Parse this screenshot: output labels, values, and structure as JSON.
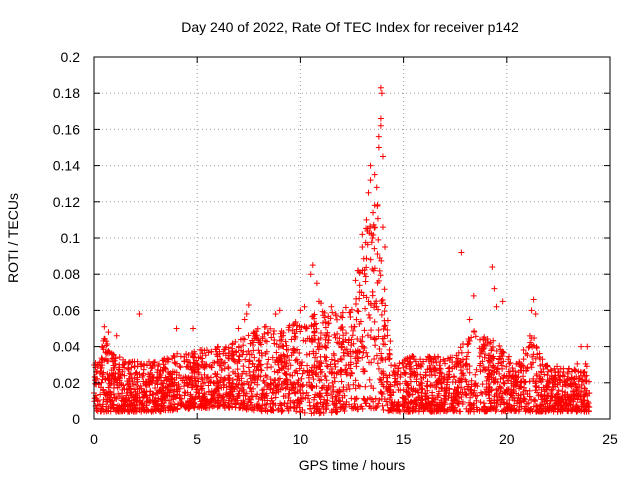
{
  "chart_data": {
    "type": "scatter",
    "title": "Day 240 of 2022, Rate Of TEC Index for receiver p142",
    "xlabel": "GPS time / hours",
    "ylabel": "ROTI / TECUs",
    "xlim": [
      0,
      25
    ],
    "ylim": [
      0,
      0.2
    ],
    "x_ticks": [
      0,
      5,
      10,
      15,
      20,
      25
    ],
    "y_ticks": [
      0,
      0.02,
      0.04,
      0.06,
      0.08,
      0.1,
      0.12,
      0.14,
      0.16,
      0.18,
      0.2
    ],
    "x_tick_labels": [
      "0",
      "5",
      "10",
      "15",
      "20",
      "25"
    ],
    "y_tick_labels": [
      "0",
      "0.02",
      "0.04",
      "0.06",
      "0.08",
      "0.1",
      "0.12",
      "0.14",
      "0.16",
      "0.18",
      "0.2"
    ],
    "grid": true,
    "marker": "+",
    "color": "#ff0000",
    "series": [
      {
        "name": "ROTI",
        "envelope": [
          {
            "t": 0.0,
            "base": 0.004,
            "top": 0.032
          },
          {
            "t": 0.5,
            "base": 0.004,
            "top": 0.045
          },
          {
            "t": 1.0,
            "base": 0.004,
            "top": 0.035
          },
          {
            "t": 2.0,
            "base": 0.004,
            "top": 0.032
          },
          {
            "t": 3.0,
            "base": 0.004,
            "top": 0.032
          },
          {
            "t": 4.0,
            "base": 0.005,
            "top": 0.036
          },
          {
            "t": 5.0,
            "base": 0.006,
            "top": 0.038
          },
          {
            "t": 6.0,
            "base": 0.006,
            "top": 0.04
          },
          {
            "t": 7.0,
            "base": 0.006,
            "top": 0.044
          },
          {
            "t": 8.0,
            "base": 0.004,
            "top": 0.052
          },
          {
            "t": 9.0,
            "base": 0.004,
            "top": 0.05
          },
          {
            "t": 10.0,
            "base": 0.003,
            "top": 0.055
          },
          {
            "t": 11.0,
            "base": 0.003,
            "top": 0.06
          },
          {
            "t": 12.0,
            "base": 0.004,
            "top": 0.058
          },
          {
            "t": 12.6,
            "base": 0.005,
            "top": 0.075
          },
          {
            "t": 13.2,
            "base": 0.005,
            "top": 0.11
          },
          {
            "t": 13.7,
            "base": 0.006,
            "top": 0.125
          },
          {
            "t": 14.0,
            "base": 0.005,
            "top": 0.08
          },
          {
            "t": 14.5,
            "base": 0.004,
            "top": 0.032
          },
          {
            "t": 15.5,
            "base": 0.004,
            "top": 0.035
          },
          {
            "t": 16.5,
            "base": 0.004,
            "top": 0.035
          },
          {
            "t": 17.5,
            "base": 0.004,
            "top": 0.034
          },
          {
            "t": 18.2,
            "base": 0.004,
            "top": 0.05
          },
          {
            "t": 19.0,
            "base": 0.004,
            "top": 0.045
          },
          {
            "t": 19.6,
            "base": 0.004,
            "top": 0.042
          },
          {
            "t": 20.5,
            "base": 0.004,
            "top": 0.03
          },
          {
            "t": 21.2,
            "base": 0.004,
            "top": 0.05
          },
          {
            "t": 22.0,
            "base": 0.004,
            "top": 0.03
          },
          {
            "t": 23.0,
            "base": 0.004,
            "top": 0.028
          },
          {
            "t": 24.0,
            "base": 0.004,
            "top": 0.034
          }
        ],
        "outliers": [
          [
            0.5,
            0.051
          ],
          [
            0.7,
            0.048
          ],
          [
            1.1,
            0.046
          ],
          [
            2.2,
            0.058
          ],
          [
            4.0,
            0.05
          ],
          [
            4.8,
            0.05
          ],
          [
            7.0,
            0.05
          ],
          [
            7.4,
            0.058
          ],
          [
            7.5,
            0.063
          ],
          [
            7.3,
            0.055
          ],
          [
            9.0,
            0.06
          ],
          [
            8.8,
            0.058
          ],
          [
            10.0,
            0.06
          ],
          [
            10.2,
            0.062
          ],
          [
            10.5,
            0.08
          ],
          [
            10.6,
            0.085
          ],
          [
            10.8,
            0.075
          ],
          [
            10.9,
            0.065
          ],
          [
            11.0,
            0.064
          ],
          [
            11.5,
            0.062
          ],
          [
            12.8,
            0.082
          ],
          [
            13.0,
            0.095
          ],
          [
            13.0,
            0.102
          ],
          [
            13.2,
            0.11
          ],
          [
            13.3,
            0.125
          ],
          [
            13.4,
            0.132
          ],
          [
            13.4,
            0.14
          ],
          [
            13.6,
            0.135
          ],
          [
            13.6,
            0.118
          ],
          [
            13.7,
            0.128
          ],
          [
            13.8,
            0.15
          ],
          [
            13.8,
            0.156
          ],
          [
            13.9,
            0.162
          ],
          [
            13.9,
            0.166
          ],
          [
            13.95,
            0.18
          ],
          [
            13.9,
            0.183
          ],
          [
            14.0,
            0.145
          ],
          [
            14.0,
            0.106
          ],
          [
            14.1,
            0.095
          ],
          [
            13.5,
            0.1
          ],
          [
            17.8,
            0.092
          ],
          [
            18.2,
            0.055
          ],
          [
            18.4,
            0.068
          ],
          [
            19.3,
            0.084
          ],
          [
            19.4,
            0.072
          ],
          [
            19.5,
            0.062
          ],
          [
            19.8,
            0.065
          ],
          [
            21.3,
            0.066
          ],
          [
            21.2,
            0.06
          ],
          [
            21.4,
            0.058
          ],
          [
            23.6,
            0.04
          ],
          [
            23.9,
            0.04
          ]
        ]
      }
    ]
  }
}
